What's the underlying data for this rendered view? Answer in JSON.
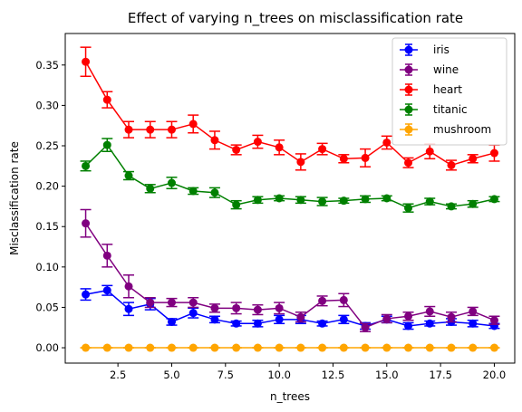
{
  "chart_data": {
    "type": "line",
    "title": "Effect of varying n_trees on misclassification rate",
    "xlabel": "n_trees",
    "ylabel": "Misclassification rate",
    "xlim": [
      0.05,
      20.95
    ],
    "ylim": [
      -0.019,
      0.389
    ],
    "xticks": [
      2.5,
      5.0,
      7.5,
      10.0,
      12.5,
      15.0,
      17.5,
      20.0
    ],
    "xtick_labels": [
      "2.5",
      "5.0",
      "7.5",
      "10.0",
      "12.5",
      "15.0",
      "17.5",
      "20.0"
    ],
    "yticks": [
      0.0,
      0.05,
      0.1,
      0.15,
      0.2,
      0.25,
      0.3,
      0.35
    ],
    "ytick_labels": [
      "0.00",
      "0.05",
      "0.10",
      "0.15",
      "0.20",
      "0.25",
      "0.30",
      "0.35"
    ],
    "grid": false,
    "legend_position": "top-right",
    "error_bars": true,
    "x": [
      1,
      2,
      3,
      4,
      5,
      6,
      7,
      8,
      9,
      10,
      11,
      12,
      13,
      14,
      15,
      16,
      17,
      18,
      19,
      20
    ],
    "series": [
      {
        "name": "iris",
        "color": "#0000ff",
        "values": [
          0.066,
          0.071,
          0.048,
          0.054,
          0.032,
          0.043,
          0.035,
          0.03,
          0.03,
          0.035,
          0.035,
          0.03,
          0.035,
          0.027,
          0.035,
          0.027,
          0.03,
          0.032,
          0.03,
          0.027
        ],
        "errors": [
          0.007,
          0.006,
          0.008,
          0.007,
          0.004,
          0.006,
          0.004,
          0.003,
          0.004,
          0.005,
          0.005,
          0.003,
          0.005,
          0.004,
          0.004,
          0.004,
          0.003,
          0.004,
          0.004,
          0.003
        ]
      },
      {
        "name": "wine",
        "color": "#800080",
        "values": [
          0.154,
          0.114,
          0.076,
          0.056,
          0.056,
          0.056,
          0.049,
          0.049,
          0.047,
          0.049,
          0.038,
          0.058,
          0.059,
          0.025,
          0.036,
          0.039,
          0.045,
          0.038,
          0.045,
          0.034
        ],
        "errors": [
          0.017,
          0.014,
          0.014,
          0.006,
          0.005,
          0.006,
          0.005,
          0.007,
          0.006,
          0.007,
          0.006,
          0.006,
          0.008,
          0.005,
          0.005,
          0.005,
          0.006,
          0.006,
          0.005,
          0.005
        ]
      },
      {
        "name": "heart",
        "color": "#ff0000",
        "values": [
          0.354,
          0.307,
          0.27,
          0.27,
          0.27,
          0.277,
          0.257,
          0.245,
          0.255,
          0.248,
          0.23,
          0.246,
          0.234,
          0.235,
          0.254,
          0.229,
          0.243,
          0.226,
          0.234,
          0.241
        ],
        "errors": [
          0.018,
          0.01,
          0.01,
          0.01,
          0.01,
          0.011,
          0.011,
          0.006,
          0.008,
          0.009,
          0.01,
          0.007,
          0.005,
          0.011,
          0.008,
          0.006,
          0.009,
          0.006,
          0.005,
          0.01
        ]
      },
      {
        "name": "titanic",
        "color": "#008000",
        "values": [
          0.225,
          0.251,
          0.213,
          0.197,
          0.204,
          0.194,
          0.192,
          0.177,
          0.183,
          0.185,
          0.183,
          0.181,
          0.182,
          0.184,
          0.185,
          0.173,
          0.181,
          0.175,
          0.178,
          0.184
        ],
        "errors": [
          0.006,
          0.008,
          0.005,
          0.005,
          0.007,
          0.004,
          0.006,
          0.005,
          0.004,
          0.003,
          0.004,
          0.005,
          0.003,
          0.004,
          0.003,
          0.005,
          0.004,
          0.003,
          0.004,
          0.003
        ]
      },
      {
        "name": "mushroom",
        "color": "#ffa500",
        "values": [
          0,
          0,
          0,
          0,
          0,
          0,
          0,
          0,
          0,
          0,
          0,
          0,
          0,
          0,
          0,
          0,
          0,
          0,
          0,
          0
        ],
        "errors": [
          0,
          0,
          0,
          0,
          0,
          0,
          0,
          0,
          0,
          0,
          0,
          0,
          0,
          0,
          0,
          0,
          0,
          0,
          0,
          0
        ]
      }
    ]
  }
}
